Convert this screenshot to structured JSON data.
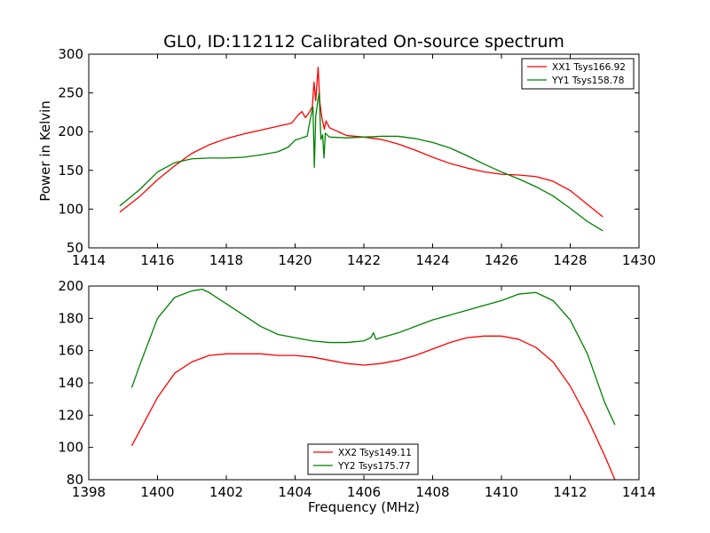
{
  "figure": {
    "title": "GL0, ID:112112 Calibrated On-source spectrum",
    "xlabel": "Frequency (MHz)",
    "colors": {
      "red": "#ff0000",
      "green": "#008000"
    }
  },
  "chart_data": [
    {
      "type": "line",
      "title": "GL0, ID:112112 Calibrated On-source spectrum",
      "xlabel": "",
      "ylabel": "Power in Kelvin",
      "xlim": [
        1414,
        1430
      ],
      "ylim": [
        50,
        300
      ],
      "xticks": [
        "1414",
        "1416",
        "1418",
        "1420",
        "1422",
        "1424",
        "1426",
        "1428",
        "1430"
      ],
      "yticks": [
        "50",
        "100",
        "150",
        "200",
        "250",
        "300"
      ],
      "grid": false,
      "legend_position": "top-right",
      "series": [
        {
          "name": "XX1 Tsys166.92",
          "color": "#ff0000",
          "points": [
            [
              1414.9,
              96
            ],
            [
              1415.5,
              117
            ],
            [
              1416,
              138
            ],
            [
              1416.5,
              156
            ],
            [
              1417,
              172
            ],
            [
              1417.5,
              183
            ],
            [
              1418,
              191
            ],
            [
              1418.5,
              197
            ],
            [
              1419,
              202
            ],
            [
              1419.5,
              207
            ],
            [
              1419.9,
              211
            ],
            [
              1420.1,
              222
            ],
            [
              1420.2,
              226
            ],
            [
              1420.3,
              218
            ],
            [
              1420.4,
              224
            ],
            [
              1420.5,
              232
            ],
            [
              1420.55,
              264
            ],
            [
              1420.6,
              240
            ],
            [
              1420.67,
              283
            ],
            [
              1420.72,
              238
            ],
            [
              1420.78,
              218
            ],
            [
              1420.85,
              203
            ],
            [
              1420.9,
              214
            ],
            [
              1421,
              205
            ],
            [
              1421.5,
              195
            ],
            [
              1422,
              193
            ],
            [
              1422.5,
              190
            ],
            [
              1423,
              184
            ],
            [
              1423.5,
              176
            ],
            [
              1424,
              167
            ],
            [
              1424.5,
              159
            ],
            [
              1425,
              153
            ],
            [
              1425.5,
              148
            ],
            [
              1426,
              145
            ],
            [
              1426.5,
              144
            ],
            [
              1427,
              142
            ],
            [
              1427.5,
              136
            ],
            [
              1428,
              124
            ],
            [
              1428.5,
              106
            ],
            [
              1428.95,
              90
            ]
          ]
        },
        {
          "name": "YY1 Tsys158.78",
          "color": "#008000",
          "points": [
            [
              1414.9,
              104
            ],
            [
              1415.5,
              126
            ],
            [
              1416,
              148
            ],
            [
              1416.5,
              160
            ],
            [
              1417,
              165
            ],
            [
              1417.5,
              166
            ],
            [
              1418,
              166
            ],
            [
              1418.5,
              167
            ],
            [
              1419,
              170
            ],
            [
              1419.5,
              174
            ],
            [
              1419.8,
              180
            ],
            [
              1420,
              189
            ],
            [
              1420.2,
              192
            ],
            [
              1420.35,
              194
            ],
            [
              1420.45,
              218
            ],
            [
              1420.52,
              232
            ],
            [
              1420.56,
              154
            ],
            [
              1420.6,
              220
            ],
            [
              1420.66,
              240
            ],
            [
              1420.7,
              250
            ],
            [
              1420.75,
              190
            ],
            [
              1420.8,
              196
            ],
            [
              1420.84,
              166
            ],
            [
              1420.88,
              198
            ],
            [
              1421,
              193
            ],
            [
              1421.5,
              192
            ],
            [
              1422,
              193
            ],
            [
              1422.5,
              194
            ],
            [
              1423,
              194
            ],
            [
              1423.5,
              191
            ],
            [
              1424,
              186
            ],
            [
              1424.5,
              179
            ],
            [
              1425,
              169
            ],
            [
              1425.5,
              158
            ],
            [
              1426,
              148
            ],
            [
              1426.5,
              139
            ],
            [
              1427,
              129
            ],
            [
              1427.5,
              117
            ],
            [
              1428,
              101
            ],
            [
              1428.5,
              84
            ],
            [
              1428.95,
              72
            ]
          ]
        }
      ]
    },
    {
      "type": "line",
      "xlabel": "Frequency (MHz)",
      "ylabel": "",
      "xlim": [
        1398,
        1414
      ],
      "ylim": [
        80,
        200
      ],
      "xticks": [
        "1398",
        "1400",
        "1402",
        "1404",
        "1406",
        "1408",
        "1410",
        "1412",
        "1414"
      ],
      "yticks": [
        "80",
        "100",
        "120",
        "140",
        "160",
        "180",
        "200"
      ],
      "grid": false,
      "legend_position": "bottom-center",
      "series": [
        {
          "name": "XX2 Tsys149.11",
          "color": "#ff0000",
          "points": [
            [
              1399.25,
              101
            ],
            [
              1399.5,
              111
            ],
            [
              1400,
              131
            ],
            [
              1400.5,
              146
            ],
            [
              1401,
              153
            ],
            [
              1401.5,
              157
            ],
            [
              1402,
              158
            ],
            [
              1402.5,
              158
            ],
            [
              1403,
              158
            ],
            [
              1403.5,
              157
            ],
            [
              1404,
              157
            ],
            [
              1404.5,
              156
            ],
            [
              1405,
              154
            ],
            [
              1405.5,
              152
            ],
            [
              1406,
              151
            ],
            [
              1406.5,
              152
            ],
            [
              1407,
              154
            ],
            [
              1407.5,
              157
            ],
            [
              1408,
              161
            ],
            [
              1408.5,
              165
            ],
            [
              1409,
              168
            ],
            [
              1409.5,
              169
            ],
            [
              1410,
              169
            ],
            [
              1410.5,
              167
            ],
            [
              1411,
              162
            ],
            [
              1411.5,
              153
            ],
            [
              1412,
              138
            ],
            [
              1412.5,
              118
            ],
            [
              1413,
              95
            ],
            [
              1413.3,
              80
            ]
          ]
        },
        {
          "name": "YY2 Tsys175.77",
          "color": "#008000",
          "points": [
            [
              1399.25,
              137
            ],
            [
              1399.5,
              152
            ],
            [
              1400,
              180
            ],
            [
              1400.5,
              193
            ],
            [
              1401,
              197
            ],
            [
              1401.3,
              198
            ],
            [
              1401.5,
              196
            ],
            [
              1402,
              189
            ],
            [
              1402.5,
              182
            ],
            [
              1403,
              175
            ],
            [
              1403.5,
              170
            ],
            [
              1404,
              168
            ],
            [
              1404.5,
              166
            ],
            [
              1405,
              165
            ],
            [
              1405.5,
              165
            ],
            [
              1406,
              166
            ],
            [
              1406.2,
              168
            ],
            [
              1406.28,
              171
            ],
            [
              1406.35,
              167
            ],
            [
              1406.5,
              168
            ],
            [
              1407,
              171
            ],
            [
              1407.5,
              175
            ],
            [
              1408,
              179
            ],
            [
              1408.5,
              182
            ],
            [
              1409,
              185
            ],
            [
              1409.5,
              188
            ],
            [
              1410,
              191
            ],
            [
              1410.5,
              195
            ],
            [
              1411,
              196
            ],
            [
              1411.5,
              191
            ],
            [
              1412,
              179
            ],
            [
              1412.5,
              158
            ],
            [
              1413,
              128
            ],
            [
              1413.3,
              114
            ]
          ]
        }
      ]
    }
  ]
}
